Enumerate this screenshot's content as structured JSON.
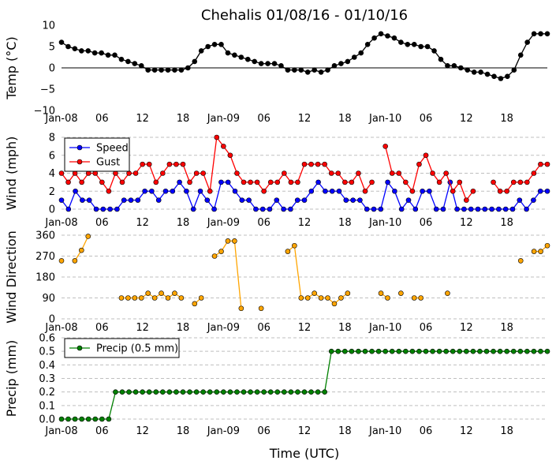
{
  "title": "Chehalis 01/08/16 - 01/10/16",
  "xlabel": "Time (UTC)",
  "x_ticks": [
    "Jan-08",
    "06",
    "12",
    "18",
    "Jan-09",
    "06",
    "12",
    "18",
    "Jan-10",
    "06",
    "12",
    "18"
  ],
  "chart_data": [
    {
      "type": "line",
      "ylabel": "Temp (°C)",
      "ylim": [
        -10,
        10
      ],
      "yticks": [
        "10",
        "5",
        "0",
        "−5",
        "−10"
      ],
      "legend": null,
      "series": [
        {
          "color": "#000000",
          "values": [
            6,
            5,
            4.5,
            4,
            4,
            3.5,
            3.5,
            3,
            3,
            2,
            1.5,
            1,
            0.5,
            -0.5,
            -0.5,
            -0.5,
            -0.5,
            -0.5,
            -0.5,
            0,
            1.5,
            4,
            5,
            5.5,
            5.5,
            3.5,
            3,
            2.5,
            2,
            1.5,
            1,
            1,
            1,
            0.5,
            -0.5,
            -0.5,
            -0.5,
            -1,
            -0.5,
            -1,
            -0.5,
            0.5,
            1,
            1.5,
            2.5,
            3.5,
            5.5,
            7,
            8,
            7.5,
            7,
            6,
            5.5,
            5.5,
            5,
            5,
            4,
            2,
            0.5,
            0.5,
            0,
            -0.5,
            -1,
            -1,
            -1.5,
            -2,
            -2.5,
            -2,
            -0.5,
            3,
            6,
            8,
            8,
            8
          ]
        }
      ]
    },
    {
      "type": "line",
      "ylabel": "Wind (mph)",
      "ylim": [
        0,
        8
      ],
      "yticks": [
        "8",
        "6",
        "4",
        "2",
        "0"
      ],
      "legend": "top-left",
      "series": [
        {
          "name": "Speed",
          "color": "#0000ff",
          "values": [
            1,
            0,
            2,
            1,
            1,
            0,
            0,
            0,
            0,
            1,
            1,
            1,
            2,
            2,
            1,
            2,
            2,
            3,
            2,
            0,
            2,
            1,
            0,
            3,
            3,
            2,
            1,
            1,
            0,
            0,
            0,
            1,
            0,
            0,
            1,
            1,
            2,
            3,
            2,
            2,
            2,
            1,
            1,
            1,
            0,
            0,
            0,
            3,
            2,
            0,
            1,
            0,
            2,
            2,
            0,
            0,
            3,
            0,
            0,
            0,
            0,
            0,
            0,
            0,
            0,
            0,
            1,
            0,
            1,
            2,
            2
          ]
        },
        {
          "name": "Gust",
          "color": "#ff0000",
          "values": [
            4,
            3,
            4,
            3,
            4,
            4,
            3,
            2,
            4,
            3,
            4,
            4,
            5,
            5,
            3,
            4,
            5,
            5,
            5,
            3,
            4,
            4,
            2,
            8,
            7,
            6,
            4,
            3,
            3,
            3,
            2,
            3,
            3,
            4,
            3,
            3,
            5,
            5,
            5,
            5,
            4,
            4,
            3,
            3,
            4,
            2,
            3,
            null,
            7,
            4,
            4,
            3,
            2,
            5,
            6,
            4,
            3,
            4,
            2,
            3,
            1,
            2,
            null,
            null,
            3,
            2,
            2,
            3,
            3,
            3,
            4,
            5,
            5
          ]
        }
      ]
    },
    {
      "type": "line",
      "ylabel": "Wind Direction",
      "ylim": [
        0,
        360
      ],
      "yticks": [
        "360",
        "270",
        "180",
        "90",
        "0"
      ],
      "legend": null,
      "series": [
        {
          "color": "#ffa500",
          "values": [
            250,
            null,
            250,
            295,
            355,
            null,
            null,
            null,
            null,
            90,
            90,
            90,
            90,
            110,
            90,
            110,
            90,
            110,
            90,
            null,
            65,
            90,
            null,
            270,
            290,
            335,
            335,
            45,
            null,
            null,
            45,
            null,
            null,
            null,
            290,
            315,
            90,
            90,
            110,
            90,
            90,
            65,
            90,
            110,
            null,
            null,
            null,
            null,
            110,
            90,
            null,
            110,
            null,
            90,
            90,
            null,
            null,
            null,
            110,
            null,
            null,
            null,
            null,
            null,
            null,
            null,
            null,
            null,
            null,
            250,
            null,
            290,
            290,
            315
          ]
        }
      ]
    },
    {
      "type": "line",
      "ylabel": "Precip (mm)",
      "ylim": [
        0,
        0.6
      ],
      "yticks": [
        "0.6",
        "0.5",
        "0.4",
        "0.3",
        "0.2",
        "0.1",
        "0.0"
      ],
      "legend": "top-left",
      "series": [
        {
          "name": "Precip (0.5 mm)",
          "color": "#008000",
          "values": [
            0,
            0,
            0,
            0,
            0,
            0,
            0,
            0,
            0.2,
            0.2,
            0.2,
            0.2,
            0.2,
            0.2,
            0.2,
            0.2,
            0.2,
            0.2,
            0.2,
            0.2,
            0.2,
            0.2,
            0.2,
            0.2,
            0.2,
            0.2,
            0.2,
            0.2,
            0.2,
            0.2,
            0.2,
            0.2,
            0.2,
            0.2,
            0.2,
            0.2,
            0.2,
            0.2,
            0.2,
            0.2,
            0.5,
            0.5,
            0.5,
            0.5,
            0.5,
            0.5,
            0.5,
            0.5,
            0.5,
            0.5,
            0.5,
            0.5,
            0.5,
            0.5,
            0.5,
            0.5,
            0.5,
            0.5,
            0.5,
            0.5,
            0.5,
            0.5,
            0.5,
            0.5,
            0.5,
            0.5,
            0.5,
            0.5,
            0.5,
            0.5,
            0.5,
            0.5,
            0.5
          ]
        }
      ]
    }
  ]
}
